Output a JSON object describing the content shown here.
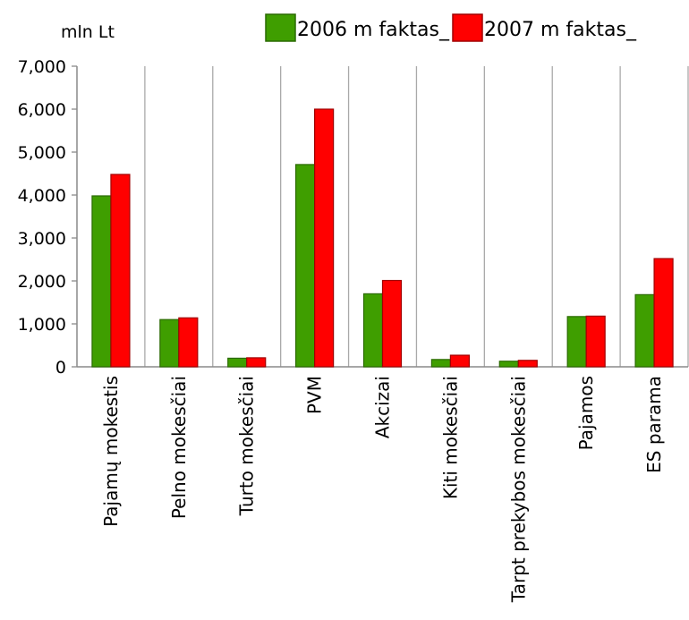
{
  "chart_data": {
    "type": "bar",
    "unit_label": "mln Lt",
    "categories": [
      "Pajamų mokestis",
      "Pelno mokesčiai",
      "Turto mokesčiai",
      "PVM",
      "Akcizai",
      "Kiti mokesčiai",
      "Tarpt prekybos mokesčiai",
      "Pajamos",
      "ES parama"
    ],
    "series": [
      {
        "name": "2006 m faktas_",
        "color": "#3f9e00",
        "values": [
          3980,
          1100,
          200,
          4710,
          1700,
          170,
          130,
          1170,
          1680
        ]
      },
      {
        "name": "2007 m faktas_",
        "color": "#ff0000",
        "values": [
          4480,
          1140,
          210,
          6000,
          2010,
          270,
          150,
          1180,
          2520
        ]
      }
    ],
    "y_ticks": [
      "0",
      "1,000",
      "2,000",
      "3,000",
      "4,000",
      "5,000",
      "6,000",
      "7,000"
    ],
    "ylim": [
      0,
      7000
    ],
    "grid": "vertical",
    "legend_position": "top-right"
  }
}
